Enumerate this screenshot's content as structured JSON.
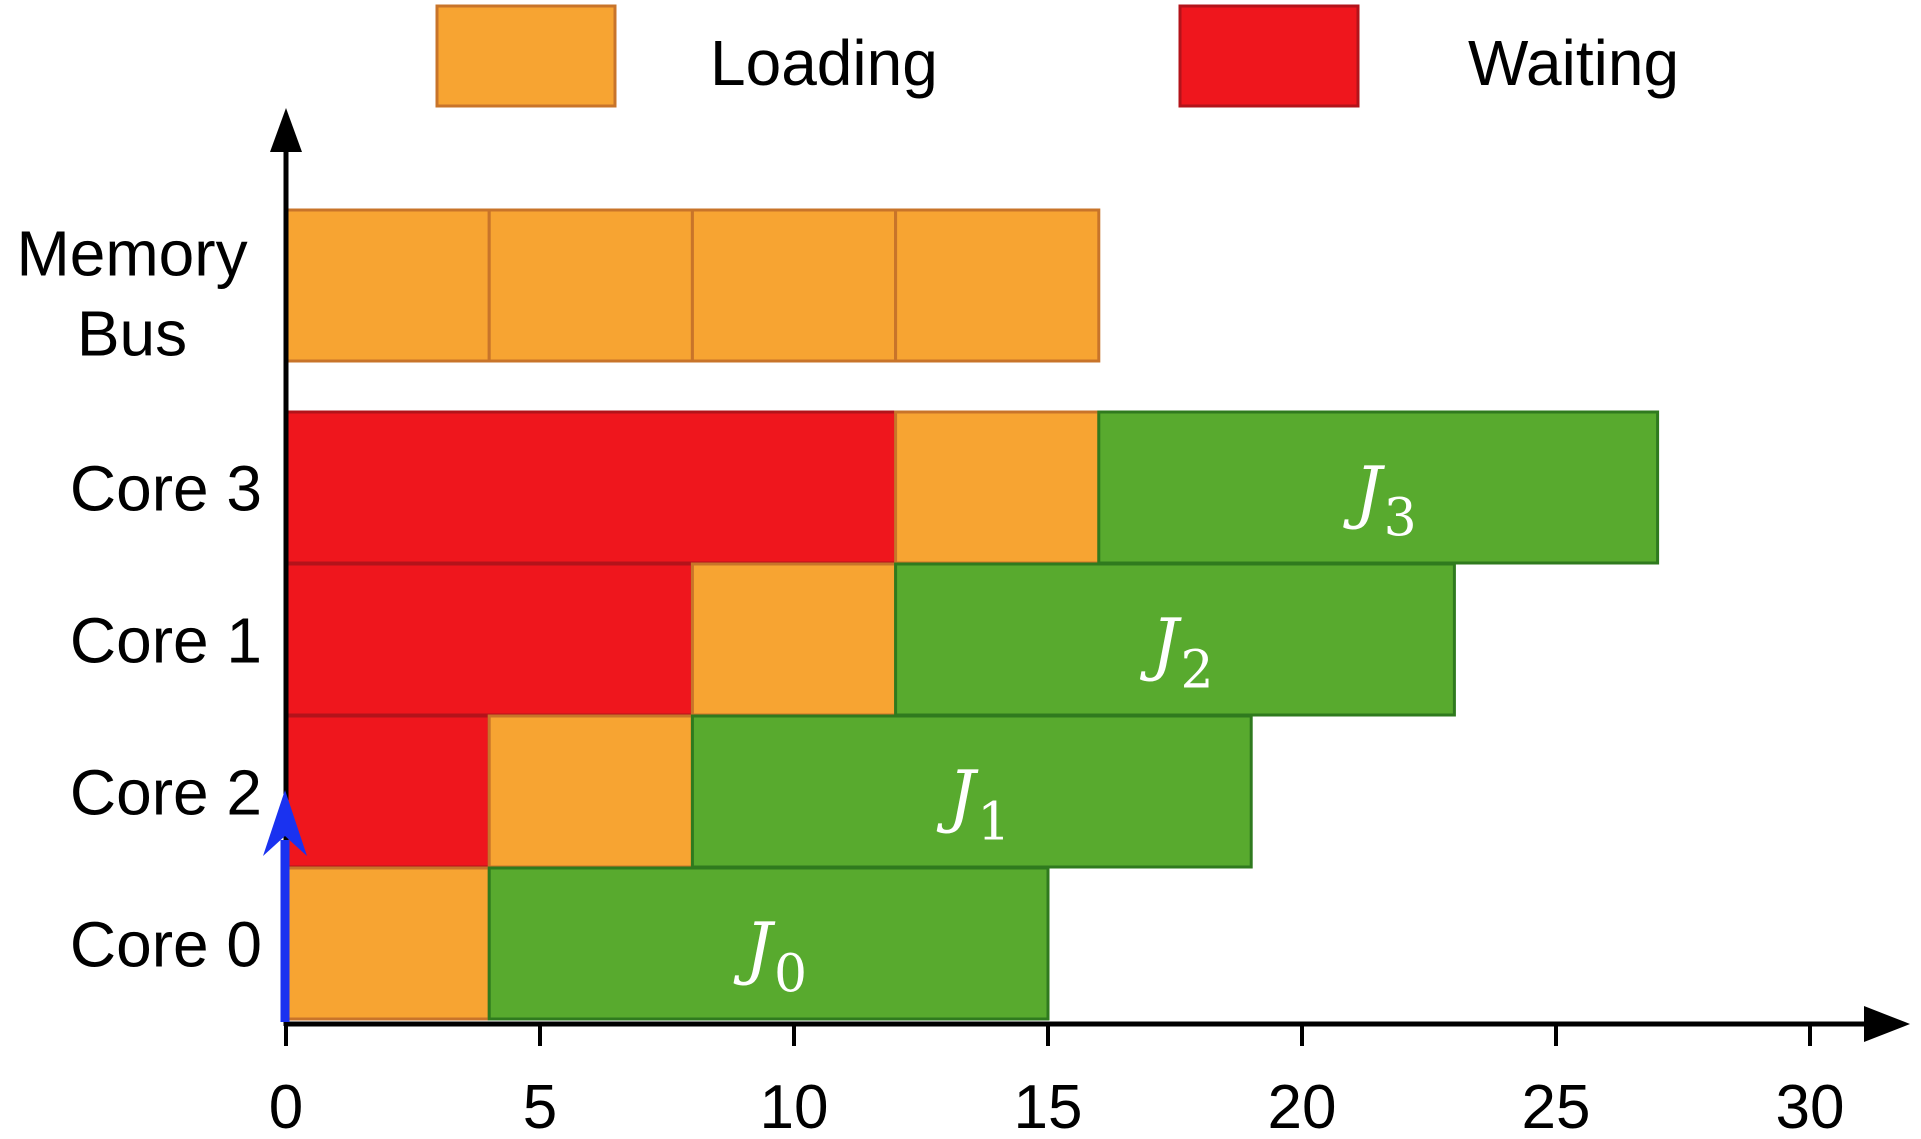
{
  "chart_data": {
    "type": "gantt",
    "legend": [
      {
        "name": "Loading",
        "color": "#F7A432",
        "stroke": "#C8742A"
      },
      {
        "name": "Waiting",
        "color": "#EF161D",
        "stroke": "#B3131A"
      }
    ],
    "rows": [
      {
        "label_lines": [
          "Memory",
          "Bus"
        ]
      },
      {
        "label_lines": [
          "Core 3"
        ]
      },
      {
        "label_lines": [
          "Core 1"
        ]
      },
      {
        "label_lines": [
          "Core 2"
        ]
      },
      {
        "label_lines": [
          "Core 0"
        ]
      }
    ],
    "segments": [
      {
        "row": 0,
        "start": 0,
        "end": 4,
        "kind": "Loading"
      },
      {
        "row": 0,
        "start": 4,
        "end": 8,
        "kind": "Loading"
      },
      {
        "row": 0,
        "start": 8,
        "end": 12,
        "kind": "Loading"
      },
      {
        "row": 0,
        "start": 12,
        "end": 16,
        "kind": "Loading"
      },
      {
        "row": 1,
        "start": 0,
        "end": 12,
        "kind": "Waiting"
      },
      {
        "row": 1,
        "start": 12,
        "end": 16,
        "kind": "Loading"
      },
      {
        "row": 1,
        "start": 16,
        "end": 27,
        "kind": "Job",
        "job": "J",
        "sub": "3"
      },
      {
        "row": 2,
        "start": 0,
        "end": 8,
        "kind": "Waiting"
      },
      {
        "row": 2,
        "start": 8,
        "end": 12,
        "kind": "Loading"
      },
      {
        "row": 2,
        "start": 12,
        "end": 23,
        "kind": "Job",
        "job": "J",
        "sub": "2"
      },
      {
        "row": 3,
        "start": 0,
        "end": 4,
        "kind": "Waiting"
      },
      {
        "row": 3,
        "start": 4,
        "end": 8,
        "kind": "Loading"
      },
      {
        "row": 3,
        "start": 8,
        "end": 19,
        "kind": "Job",
        "job": "J",
        "sub": "1"
      },
      {
        "row": 4,
        "start": 0,
        "end": 4,
        "kind": "Loading"
      },
      {
        "row": 4,
        "start": 4,
        "end": 15,
        "kind": "Job",
        "job": "J",
        "sub": "0"
      }
    ],
    "job_color": "#58AA2E",
    "job_stroke": "#2F7A1E",
    "xlim": [
      0,
      30
    ],
    "xticks": [
      0,
      5,
      10,
      15,
      20,
      25,
      30
    ],
    "release_marker": {
      "x": 0,
      "color": "#1A32F0"
    }
  }
}
